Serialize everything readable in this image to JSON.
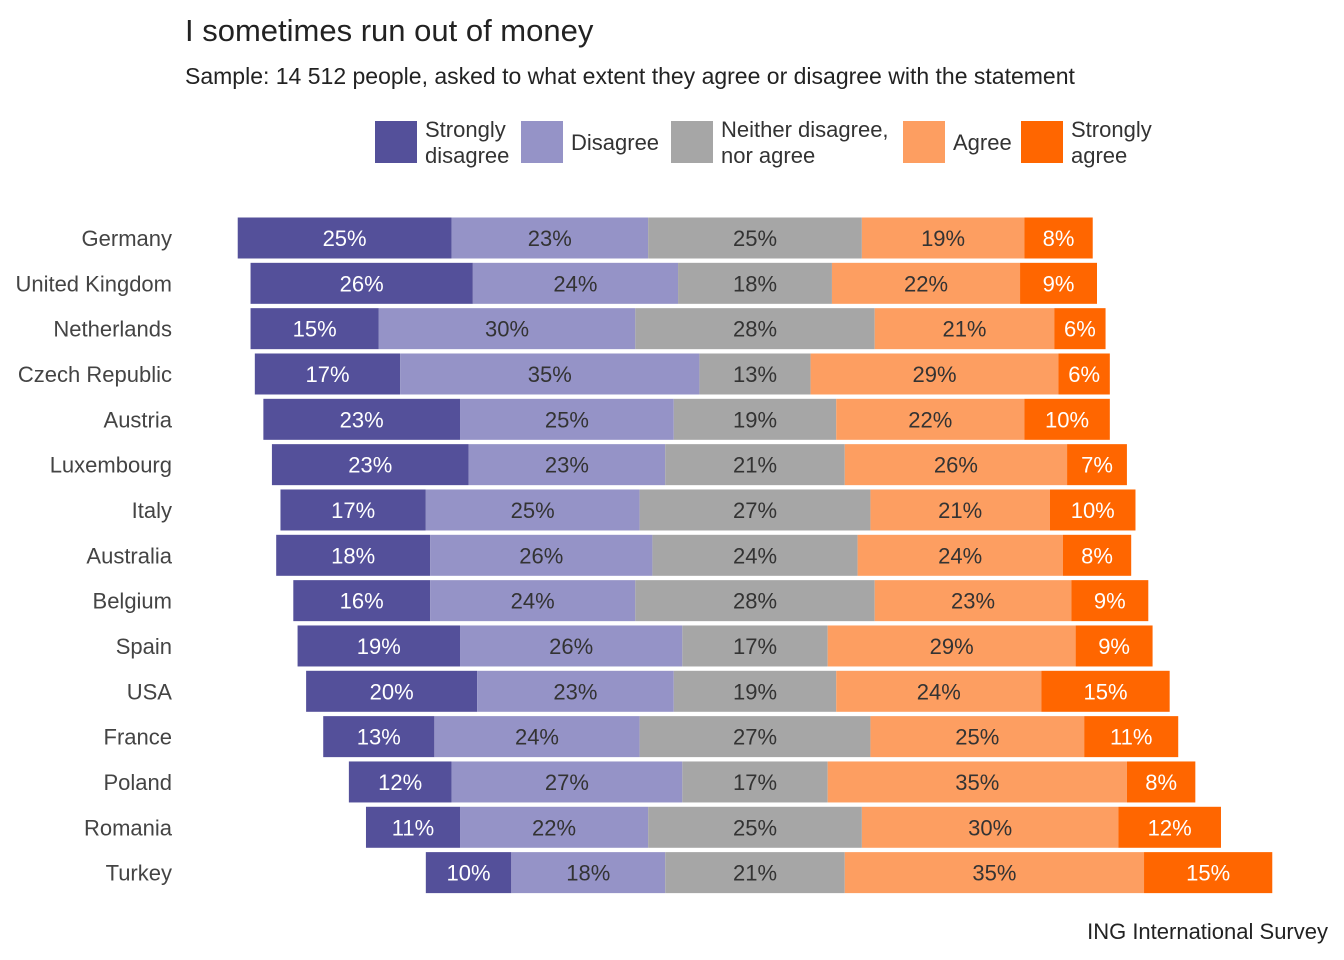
{
  "chart_data": {
    "type": "bar",
    "orientation": "horizontal",
    "stacked": true,
    "diverging": true,
    "title": "I sometimes run out of money",
    "subtitle": "Sample: 14 512 people, asked to what extent they agree or disagree with the statement",
    "caption": "ING International Survey",
    "xlabel": "",
    "ylabel": "",
    "grid": false,
    "legend_position": "top",
    "value_suffix": "%",
    "categories": [
      "Germany",
      "United Kingdom",
      "Netherlands",
      "Czech Republic",
      "Austria",
      "Luxembourg",
      "Italy",
      "Australia",
      "Belgium",
      "Spain",
      "USA",
      "France",
      "Poland",
      "Romania",
      "Turkey"
    ],
    "series": [
      {
        "name": "Strongly disagree",
        "legend_lines": [
          "Strongly",
          "disagree"
        ],
        "color": "#54509a",
        "label_color": "#ffffff",
        "values": [
          25,
          26,
          15,
          17,
          23,
          23,
          17,
          18,
          16,
          19,
          20,
          13,
          12,
          11,
          10
        ]
      },
      {
        "name": "Disagree",
        "legend_lines": [
          "Disagree"
        ],
        "color": "#9593c7",
        "label_color": "#333333",
        "values": [
          23,
          24,
          30,
          35,
          25,
          23,
          25,
          26,
          24,
          26,
          23,
          24,
          27,
          22,
          18
        ]
      },
      {
        "name": "Neither disagree, nor agree",
        "legend_lines": [
          "Neither disagree,",
          "nor agree"
        ],
        "color": "#a6a6a6",
        "label_color": "#333333",
        "values": [
          25,
          18,
          28,
          13,
          19,
          21,
          27,
          24,
          28,
          17,
          19,
          27,
          17,
          25,
          21
        ]
      },
      {
        "name": "Agree",
        "legend_lines": [
          "Agree"
        ],
        "color": "#fd9e61",
        "label_color": "#333333",
        "values": [
          19,
          22,
          21,
          29,
          22,
          26,
          21,
          24,
          23,
          29,
          24,
          25,
          35,
          30,
          35
        ]
      },
      {
        "name": "Strongly agree",
        "legend_lines": [
          "Strongly",
          "agree"
        ],
        "color": "#ff6600",
        "label_color": "#ffffff",
        "values": [
          8,
          9,
          6,
          6,
          10,
          7,
          10,
          8,
          9,
          9,
          15,
          11,
          8,
          12,
          15
        ]
      }
    ]
  }
}
